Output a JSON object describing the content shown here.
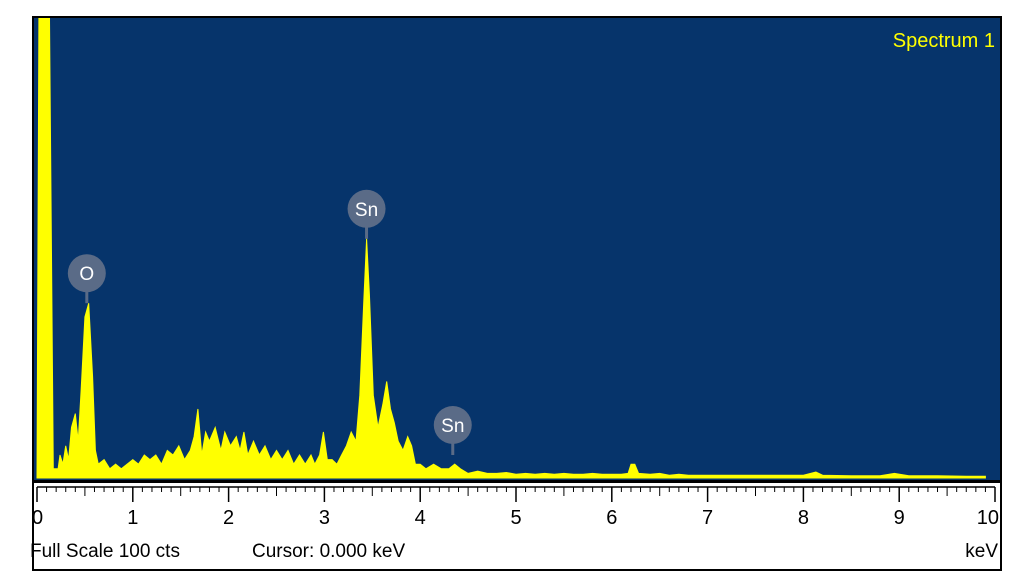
{
  "chart_data": {
    "type": "area",
    "title": "Spectrum 1",
    "xlabel": "keV",
    "xlim": [
      0,
      10
    ],
    "ylim": [
      0,
      100
    ],
    "x_ticks": [
      "0",
      "1",
      "2",
      "3",
      "4",
      "5",
      "6",
      "7",
      "8",
      "9",
      "10"
    ],
    "status": {
      "full_scale": "Full Scale 100 cts",
      "cursor": "Cursor: 0.000 keV"
    },
    "colors": {
      "background": "#06346b",
      "spectrum": "#ffff00",
      "title": "#ffff00",
      "marker": "#5a6b87"
    },
    "series": [
      {
        "values": [
          [
            0.0,
            0
          ],
          [
            0.02,
            100
          ],
          [
            0.13,
            100
          ],
          [
            0.17,
            2
          ],
          [
            0.22,
            2
          ],
          [
            0.24,
            5
          ],
          [
            0.27,
            3
          ],
          [
            0.3,
            7
          ],
          [
            0.33,
            4
          ],
          [
            0.36,
            11
          ],
          [
            0.4,
            14
          ],
          [
            0.43,
            8
          ],
          [
            0.46,
            19
          ],
          [
            0.5,
            35
          ],
          [
            0.54,
            38
          ],
          [
            0.58,
            22
          ],
          [
            0.61,
            6
          ],
          [
            0.64,
            3
          ],
          [
            0.7,
            4
          ],
          [
            0.76,
            2
          ],
          [
            0.82,
            3
          ],
          [
            0.88,
            2
          ],
          [
            0.94,
            3
          ],
          [
            1.0,
            4
          ],
          [
            1.06,
            3
          ],
          [
            1.12,
            5
          ],
          [
            1.18,
            4
          ],
          [
            1.24,
            5
          ],
          [
            1.3,
            3
          ],
          [
            1.36,
            6
          ],
          [
            1.42,
            5
          ],
          [
            1.48,
            7
          ],
          [
            1.54,
            4
          ],
          [
            1.6,
            6
          ],
          [
            1.64,
            9
          ],
          [
            1.68,
            15
          ],
          [
            1.72,
            5
          ],
          [
            1.76,
            10
          ],
          [
            1.8,
            8
          ],
          [
            1.86,
            11
          ],
          [
            1.92,
            6
          ],
          [
            1.96,
            10
          ],
          [
            2.02,
            7
          ],
          [
            2.08,
            9
          ],
          [
            2.12,
            6
          ],
          [
            2.16,
            10
          ],
          [
            2.2,
            5
          ],
          [
            2.26,
            8
          ],
          [
            2.32,
            5
          ],
          [
            2.38,
            7
          ],
          [
            2.44,
            4
          ],
          [
            2.5,
            6
          ],
          [
            2.56,
            4
          ],
          [
            2.62,
            6
          ],
          [
            2.68,
            3
          ],
          [
            2.74,
            5
          ],
          [
            2.8,
            3
          ],
          [
            2.86,
            5
          ],
          [
            2.9,
            3
          ],
          [
            2.95,
            5
          ],
          [
            2.99,
            10
          ],
          [
            3.03,
            4
          ],
          [
            3.08,
            4
          ],
          [
            3.13,
            3
          ],
          [
            3.18,
            5
          ],
          [
            3.23,
            7
          ],
          [
            3.28,
            10
          ],
          [
            3.33,
            8
          ],
          [
            3.37,
            18
          ],
          [
            3.41,
            38
          ],
          [
            3.44,
            52
          ],
          [
            3.47,
            40
          ],
          [
            3.51,
            18
          ],
          [
            3.56,
            11
          ],
          [
            3.61,
            16
          ],
          [
            3.65,
            21
          ],
          [
            3.69,
            15
          ],
          [
            3.73,
            12
          ],
          [
            3.77,
            8
          ],
          [
            3.82,
            6
          ],
          [
            3.87,
            9
          ],
          [
            3.91,
            7
          ],
          [
            3.95,
            3
          ],
          [
            4.0,
            3
          ],
          [
            4.06,
            2
          ],
          [
            4.14,
            3
          ],
          [
            4.22,
            2
          ],
          [
            4.3,
            2
          ],
          [
            4.36,
            3
          ],
          [
            4.42,
            2
          ],
          [
            4.5,
            1
          ],
          [
            4.6,
            1.5
          ],
          [
            4.7,
            1
          ],
          [
            4.8,
            1
          ],
          [
            4.9,
            1.2
          ],
          [
            5.0,
            0.8
          ],
          [
            5.1,
            1
          ],
          [
            5.2,
            0.8
          ],
          [
            5.3,
            1
          ],
          [
            5.4,
            0.8
          ],
          [
            5.5,
            1
          ],
          [
            5.6,
            0.8
          ],
          [
            5.7,
            0.8
          ],
          [
            5.8,
            1
          ],
          [
            5.9,
            0.8
          ],
          [
            6.0,
            0.8
          ],
          [
            6.1,
            0.8
          ],
          [
            6.17,
            1
          ],
          [
            6.2,
            3
          ],
          [
            6.24,
            3
          ],
          [
            6.28,
            1
          ],
          [
            6.4,
            0.8
          ],
          [
            6.5,
            1
          ],
          [
            6.6,
            0.6
          ],
          [
            6.7,
            0.8
          ],
          [
            6.8,
            0.6
          ],
          [
            6.9,
            0.6
          ],
          [
            7.0,
            0.6
          ],
          [
            7.2,
            0.6
          ],
          [
            7.4,
            0.6
          ],
          [
            7.6,
            0.6
          ],
          [
            7.8,
            0.6
          ],
          [
            8.0,
            0.6
          ],
          [
            8.13,
            1.3
          ],
          [
            8.2,
            0.6
          ],
          [
            8.5,
            0.5
          ],
          [
            8.8,
            0.5
          ],
          [
            8.95,
            1
          ],
          [
            9.1,
            0.5
          ],
          [
            9.4,
            0.5
          ],
          [
            9.7,
            0.4
          ],
          [
            9.9,
            0.4
          ]
        ]
      }
    ],
    "annotations": [
      {
        "label": "O",
        "x": 0.52,
        "y": 38
      },
      {
        "label": "Sn",
        "x": 3.44,
        "y": 52
      },
      {
        "label": "Sn",
        "x": 4.34,
        "y": 5
      }
    ]
  }
}
